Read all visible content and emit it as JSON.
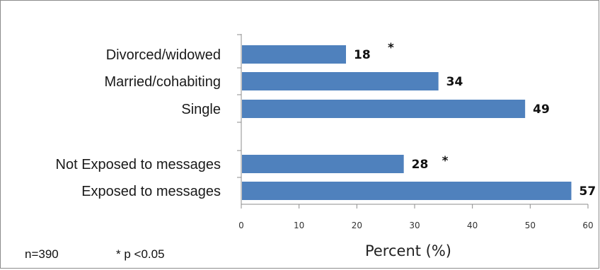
{
  "chart_data": {
    "type": "bar",
    "orientation": "horizontal",
    "categories": [
      "Divorced/widowed",
      "Married/cohabiting",
      "Single",
      "Not Exposed to messages",
      "Exposed to messages"
    ],
    "values": [
      18,
      34,
      49,
      28,
      57
    ],
    "value_labels": [
      "18",
      "34",
      "49",
      "28",
      "57"
    ],
    "significance_markers": [
      "*",
      "",
      "",
      "*",
      ""
    ],
    "groups": [
      [
        "Divorced/widowed",
        "Married/cohabiting",
        "Single"
      ],
      [
        "Not Exposed to messages",
        "Exposed to messages"
      ]
    ],
    "xlabel": "Percent (%)",
    "xlim": [
      0,
      60
    ],
    "xticks": [
      0,
      10,
      20,
      30,
      40,
      50,
      60
    ],
    "grid": false,
    "bar_color": "#4f81bd"
  },
  "notes": {
    "sample_size": "n=390",
    "significance": "* p <0.05"
  }
}
